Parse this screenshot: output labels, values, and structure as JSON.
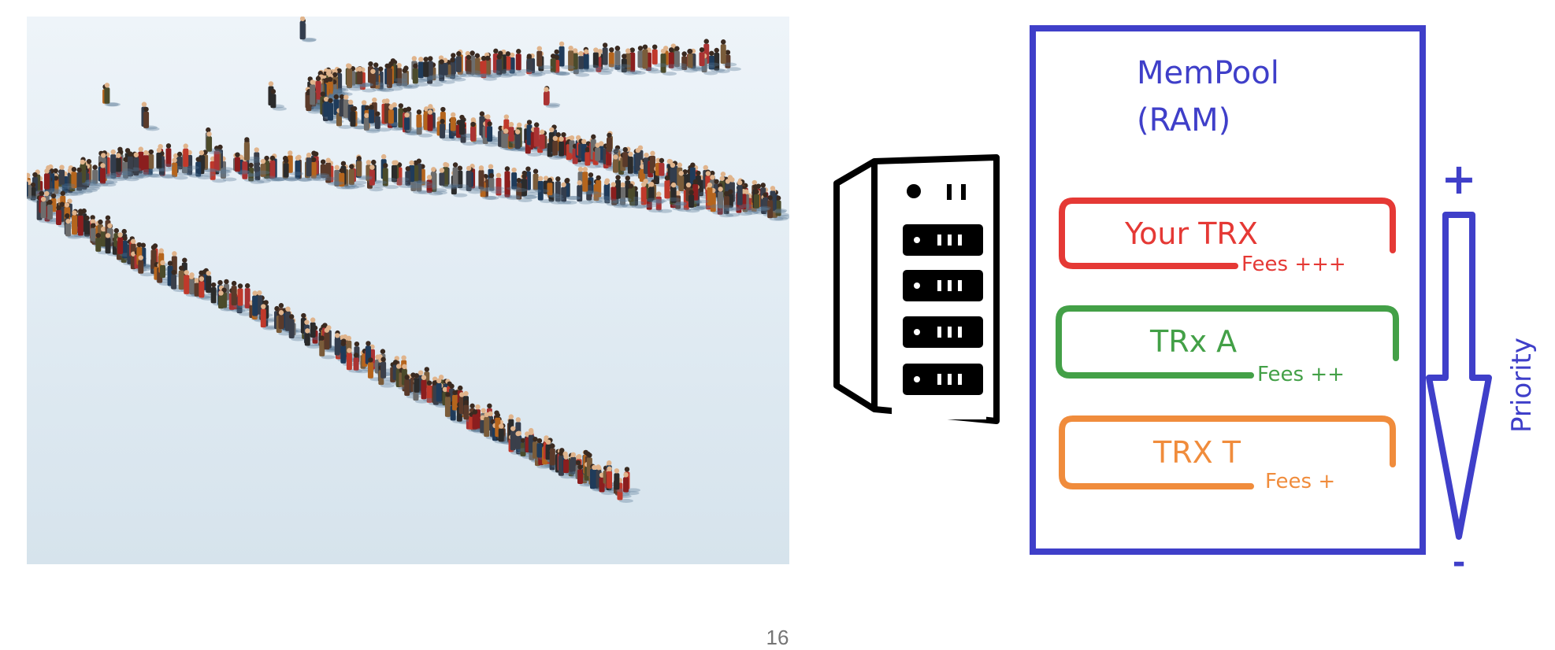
{
  "diagram": {
    "mempool_title_line1": "MemPool",
    "mempool_title_line2": "(RAM)",
    "transactions": [
      {
        "label": "Your TRX",
        "fees": "Fees +++",
        "color": "#e53935"
      },
      {
        "label": "TRx A",
        "fees": "Fees ++",
        "color": "#43a047"
      },
      {
        "label": "TRX T",
        "fees": "Fees +",
        "color": "#f08c3c"
      }
    ],
    "priority_label": "Priority",
    "priority_high": "+",
    "priority_low": "-",
    "colors": {
      "accent": "#3f3fc9",
      "server": "#000000"
    }
  },
  "photo": {
    "subject": "crowd-queue-image"
  },
  "page_number": "16"
}
